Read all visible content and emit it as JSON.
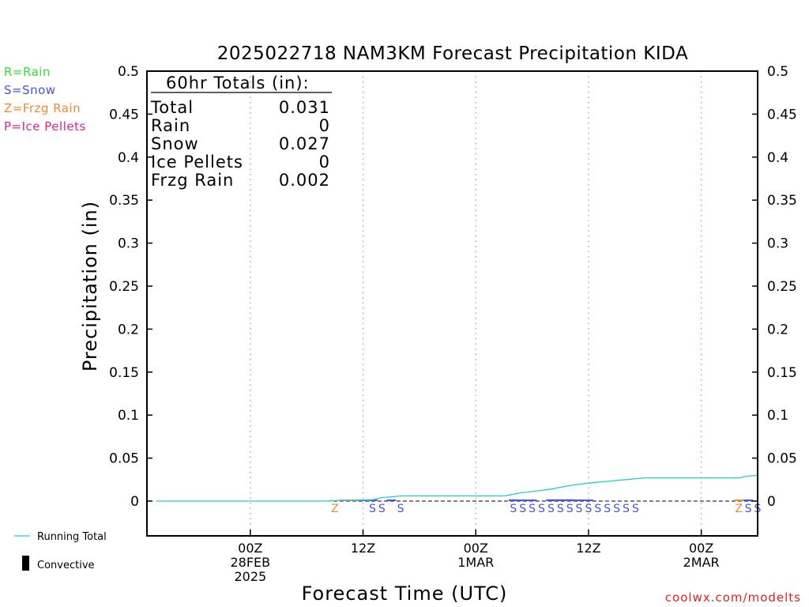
{
  "chart_data": {
    "type": "line",
    "title": "2025022718 NAM3KM Forecast Precipitation KIDA",
    "xlabel": "Forecast Time (UTC)",
    "ylabel": "Precipitation (in)",
    "ylim": [
      0,
      0.5
    ],
    "y_ticks": [
      "0",
      "0.05",
      "0.1",
      "0.15",
      "0.2",
      "0.25",
      "0.3",
      "0.35",
      "0.4",
      "0.45",
      "0.5"
    ],
    "x_range_hours": [
      -5,
      60
    ],
    "x_ticks": [
      {
        "hour": 6,
        "lines": [
          "00Z",
          "28FEB",
          "2025"
        ]
      },
      {
        "hour": 18,
        "lines": [
          "12Z"
        ]
      },
      {
        "hour": 30,
        "lines": [
          "00Z",
          "1MAR"
        ]
      },
      {
        "hour": 42,
        "lines": [
          "12Z"
        ]
      },
      {
        "hour": 54,
        "lines": [
          "00Z",
          "2MAR"
        ]
      }
    ],
    "grid": "vertical-dotted",
    "legend": {
      "types": [
        {
          "text": "R=Rain",
          "color": "#33dd33"
        },
        {
          "text": "S=Snow",
          "color": "#4455dd"
        },
        {
          "text": "Z=Frzg Rain",
          "color": "#ee8833"
        },
        {
          "text": "P=Ice Pellets",
          "color": "#dd2299"
        }
      ],
      "running_total": "Running Total",
      "convective": "Convective"
    },
    "totals": {
      "header": "60hr Totals (in):",
      "rows": [
        {
          "label": "Total",
          "value": "0.031"
        },
        {
          "label": "Rain",
          "value": "0"
        },
        {
          "label": "Snow",
          "value": "0.027"
        },
        {
          "label": "Ice Pellets",
          "value": "0"
        },
        {
          "label": "Frzg Rain",
          "value": "0.002"
        }
      ]
    },
    "running_total": {
      "name": "Running Total",
      "color": "#22cccc",
      "x": [
        -4,
        10,
        14,
        16,
        18,
        19,
        20,
        21,
        22,
        25,
        28,
        31,
        33,
        34,
        35,
        36,
        38,
        40,
        42,
        44,
        46,
        48,
        50,
        52,
        54,
        56,
        58,
        59,
        60
      ],
      "y": [
        0,
        0,
        0,
        0.001,
        0.001,
        0.0015,
        0.004,
        0.005,
        0.006,
        0.006,
        0.006,
        0.006,
        0.006,
        0.008,
        0.01,
        0.011,
        0.014,
        0.018,
        0.021,
        0.023,
        0.025,
        0.027,
        0.027,
        0.027,
        0.027,
        0.027,
        0.027,
        0.029,
        0.03
      ]
    },
    "precip_bars": [
      {
        "hour": 16,
        "value": 0.001,
        "color": "#ee8833"
      },
      {
        "hour": 17,
        "value": 0.001,
        "color": "#ee8833"
      },
      {
        "hour": 18,
        "value": 0.001,
        "color": "#4455dd"
      },
      {
        "hour": 19,
        "value": 0.002,
        "color": "#4455dd"
      },
      {
        "hour": 21,
        "value": 0.001,
        "color": "#4455dd"
      },
      {
        "hour": 34,
        "value": 0.002,
        "color": "#4455dd"
      },
      {
        "hour": 35,
        "value": 0.001,
        "color": "#4455dd"
      },
      {
        "hour": 36,
        "value": 0.001,
        "color": "#4455dd"
      },
      {
        "hour": 38,
        "value": 0.002,
        "color": "#4455dd"
      },
      {
        "hour": 39,
        "value": 0.002,
        "color": "#4455dd"
      },
      {
        "hour": 40,
        "value": 0.002,
        "color": "#4455dd"
      },
      {
        "hour": 41,
        "value": 0.001,
        "color": "#4455dd"
      },
      {
        "hour": 42,
        "value": 0.001,
        "color": "#4455dd"
      },
      {
        "hour": 58,
        "value": 0.001,
        "color": "#ee8833"
      },
      {
        "hour": 59,
        "value": 0.001,
        "color": "#4455dd"
      }
    ],
    "type_markers": [
      {
        "hour": 15,
        "code": "Z",
        "color": "#ee8833"
      },
      {
        "hour": 19,
        "code": "S",
        "color": "#4455dd"
      },
      {
        "hour": 20,
        "code": "S",
        "color": "#4455dd"
      },
      {
        "hour": 22,
        "code": "S",
        "color": "#4455dd"
      },
      {
        "hour": 34,
        "code": "S",
        "color": "#4455dd"
      },
      {
        "hour": 35,
        "code": "S",
        "color": "#4455dd"
      },
      {
        "hour": 36,
        "code": "S",
        "color": "#4455dd"
      },
      {
        "hour": 37,
        "code": "S",
        "color": "#4455dd"
      },
      {
        "hour": 38,
        "code": "S",
        "color": "#4455dd"
      },
      {
        "hour": 39,
        "code": "S",
        "color": "#4455dd"
      },
      {
        "hour": 40,
        "code": "S",
        "color": "#4455dd"
      },
      {
        "hour": 41,
        "code": "S",
        "color": "#4455dd"
      },
      {
        "hour": 42,
        "code": "S",
        "color": "#4455dd"
      },
      {
        "hour": 43,
        "code": "S",
        "color": "#4455dd"
      },
      {
        "hour": 44,
        "code": "S",
        "color": "#4455dd"
      },
      {
        "hour": 45,
        "code": "S",
        "color": "#4455dd"
      },
      {
        "hour": 46,
        "code": "S",
        "color": "#4455dd"
      },
      {
        "hour": 47,
        "code": "S",
        "color": "#4455dd"
      },
      {
        "hour": 58,
        "code": "Z",
        "color": "#ee8833"
      },
      {
        "hour": 59,
        "code": "S",
        "color": "#4455dd"
      },
      {
        "hour": 60,
        "code": "S",
        "color": "#4455dd"
      }
    ],
    "watermark": "coolwx.com/modelts",
    "watermark_color": "#dd2222"
  }
}
